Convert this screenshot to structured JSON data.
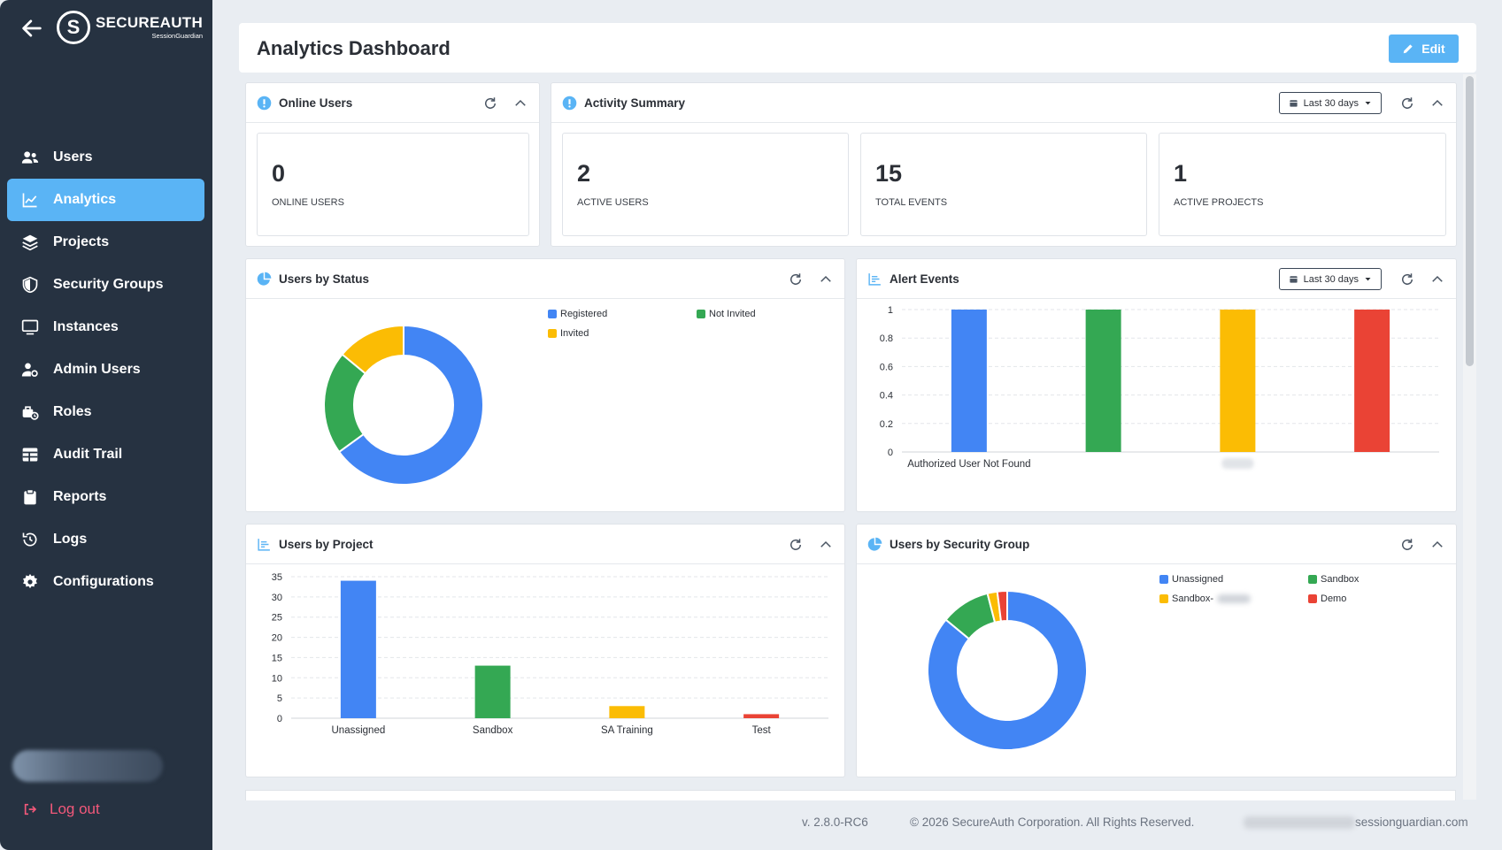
{
  "app": {
    "logo_title": "SECUREAUTH",
    "logo_subtitle": "SessionGuardian"
  },
  "sidebar": {
    "items": [
      {
        "label": "Users",
        "icon": "users-icon",
        "active": false
      },
      {
        "label": "Analytics",
        "icon": "chart-line-icon",
        "active": true
      },
      {
        "label": "Projects",
        "icon": "layers-icon",
        "active": false
      },
      {
        "label": "Security Groups",
        "icon": "shield-icon",
        "active": false
      },
      {
        "label": "Instances",
        "icon": "monitor-icon",
        "active": false
      },
      {
        "label": "Admin Users",
        "icon": "user-gear-icon",
        "active": false
      },
      {
        "label": "Roles",
        "icon": "user-clock-icon",
        "active": false
      },
      {
        "label": "Audit Trail",
        "icon": "table-icon",
        "active": false
      },
      {
        "label": "Reports",
        "icon": "clipboard-icon",
        "active": false
      },
      {
        "label": "Logs",
        "icon": "history-icon",
        "active": false
      },
      {
        "label": "Configurations",
        "icon": "gear-icon",
        "active": false
      }
    ],
    "logout_label": "Log out"
  },
  "header": {
    "title": "Analytics Dashboard",
    "edit_label": "Edit"
  },
  "online_users": {
    "title": "Online Users",
    "value": "0",
    "label": "ONLINE USERS"
  },
  "activity_summary": {
    "title": "Activity Summary",
    "range": "Last 30 days",
    "stats": [
      {
        "value": "2",
        "label": "ACTIVE USERS"
      },
      {
        "value": "15",
        "label": "TOTAL EVENTS"
      },
      {
        "value": "1",
        "label": "ACTIVE PROJECTS"
      }
    ]
  },
  "users_by_status": {
    "title": "Users by Status",
    "chart_data": {
      "type": "pie",
      "categories": [
        "Registered",
        "Not Invited",
        "Invited"
      ],
      "values": [
        65,
        21,
        14
      ],
      "colors": [
        "#4285f4",
        "#34a853",
        "#fbbc04"
      ]
    }
  },
  "alert_events": {
    "title": "Alert Events",
    "range": "Last 30 days",
    "chart_data": {
      "type": "bar",
      "categories": [
        "Authorized User Not Found",
        "",
        "",
        ""
      ],
      "values": [
        1,
        1,
        1,
        1
      ],
      "colors": [
        "#4285f4",
        "#34a853",
        "#fbbc04",
        "#ea4335"
      ],
      "ylim": [
        0,
        1
      ],
      "yticks": [
        "1",
        "0.8",
        "0.6",
        "0.4",
        "0.2",
        "0"
      ],
      "grid": true
    }
  },
  "users_by_project": {
    "title": "Users by Project",
    "chart_data": {
      "type": "bar",
      "categories": [
        "Unassigned",
        "Sandbox",
        "SA Training",
        "Test"
      ],
      "values": [
        34,
        13,
        3,
        1
      ],
      "colors": [
        "#4285f4",
        "#34a853",
        "#fbbc04",
        "#ea4335"
      ],
      "ylim": [
        0,
        35
      ],
      "yticks": [
        "35",
        "30",
        "25",
        "20",
        "15",
        "10",
        "5",
        "0"
      ],
      "grid": true
    }
  },
  "users_by_security_group": {
    "title": "Users by Security Group",
    "chart_data": {
      "type": "pie",
      "categories": [
        "Unassigned",
        "Sandbox",
        "Sandbox-",
        "Demo"
      ],
      "values": [
        86,
        10,
        2,
        2
      ],
      "colors": [
        "#4285f4",
        "#34a853",
        "#fbbc04",
        "#ea4335"
      ]
    }
  },
  "footer": {
    "version": "v. 2.8.0-RC6",
    "copyright": "© 2026 SecureAuth Corporation. All Rights Reserved.",
    "domain": "sessionguardian.com"
  }
}
